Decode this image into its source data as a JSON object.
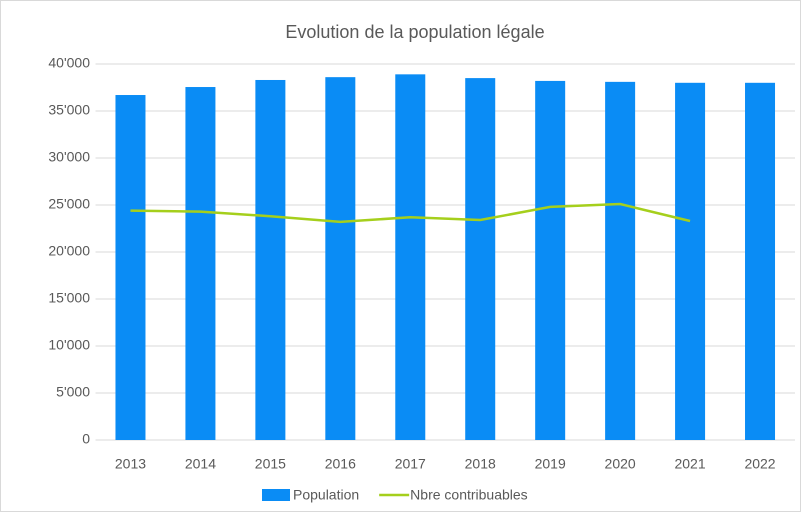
{
  "chart_data": {
    "type": "bar_line",
    "title": "Evolution de la population légale",
    "categories": [
      "2013",
      "2014",
      "2015",
      "2016",
      "2017",
      "2018",
      "2019",
      "2020",
      "2021",
      "2022"
    ],
    "series": [
      {
        "name": "Population",
        "type": "bar",
        "color": "#0a8cf5",
        "values": [
          36700,
          37550,
          38300,
          38600,
          38900,
          38500,
          38200,
          38100,
          38000,
          38000
        ]
      },
      {
        "name": "Nbre contribuables",
        "type": "line",
        "color": "#a5cf1c",
        "values": [
          24400,
          24300,
          23800,
          23200,
          23700,
          23400,
          24800,
          25100,
          23300,
          null
        ]
      }
    ],
    "ylim": [
      0,
      40000
    ],
    "yticks": [
      0,
      {
        "value": 5000,
        "label": "5'000"
      },
      {
        "value": 10000,
        "label": "10'000"
      },
      {
        "value": 15000,
        "label": "15'000"
      },
      {
        "value": 20000,
        "label": "20'000"
      },
      {
        "value": 25000,
        "label": "25'000"
      },
      {
        "value": 30000,
        "label": "30'000"
      },
      {
        "value": 35000,
        "label": "35'000"
      },
      {
        "value": 40000,
        "label": "40'000"
      }
    ],
    "grid": true,
    "legend": "bottom"
  }
}
